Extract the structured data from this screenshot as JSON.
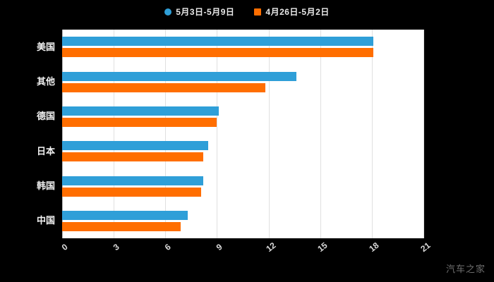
{
  "legend": [
    {
      "label": "5月3日-5月9日",
      "color": "#2f9fd8",
      "marker": "circle"
    },
    {
      "label": "4月26日-5月2日",
      "color": "#ff6e00",
      "marker": "square"
    }
  ],
  "watermark": "汽车之家",
  "chart_data": {
    "type": "bar",
    "orientation": "horizontal",
    "title": "",
    "xlabel": "",
    "ylabel": "",
    "categories": [
      "美国",
      "其他",
      "德国",
      "日本",
      "韩国",
      "中国"
    ],
    "series": [
      {
        "name": "5月3日-5月9日",
        "color": "#2f9fd8",
        "values": [
          18.1,
          13.6,
          9.1,
          8.5,
          8.2,
          7.3
        ]
      },
      {
        "name": "4月26日-5月2日",
        "color": "#ff6e00",
        "values": [
          18.1,
          11.8,
          9.0,
          8.2,
          8.1,
          6.9
        ]
      }
    ],
    "xlim": [
      0,
      21
    ],
    "xticks": [
      0,
      3,
      6,
      9,
      12,
      15,
      18,
      21
    ],
    "grid": true,
    "legend_position": "top",
    "plot_background": "#ffffff",
    "page_background": "#000000",
    "gridline_color": "#e0e0e0"
  }
}
